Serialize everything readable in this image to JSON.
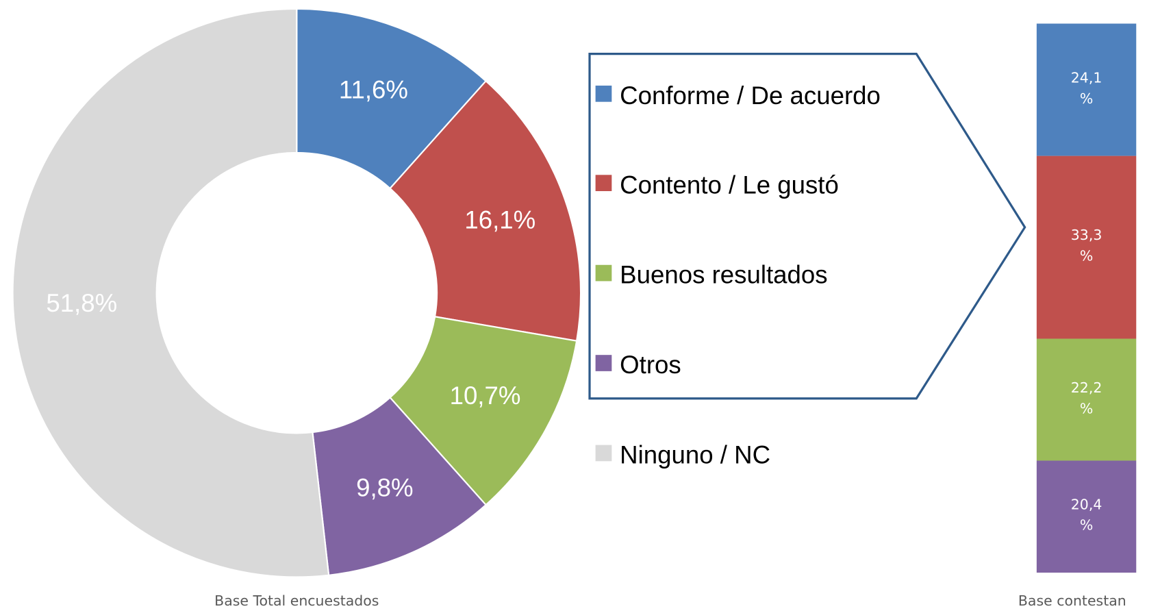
{
  "chart_data": [
    {
      "type": "donut",
      "categories": [
        "Conforme / De acuerdo",
        "Contento / Le gustó",
        "Buenos resultados",
        "Otros",
        "Ninguno / NC"
      ],
      "values": [
        11.6,
        16.1,
        10.7,
        9.8,
        51.8
      ],
      "value_labels": [
        "11,6%",
        "16,1%",
        "10,7%",
        "9,8%",
        "51,8%"
      ],
      "colors": [
        "#4f81bd",
        "#c0504d",
        "#9bbb59",
        "#8064a2",
        "#d9d9d9"
      ],
      "caption": "Base Total encuestados"
    },
    {
      "type": "stacked_bar",
      "categories": [
        "Conforme / De acuerdo",
        "Contento / Le gustó",
        "Buenos resultados",
        "Otros"
      ],
      "values": [
        24.1,
        33.3,
        22.2,
        20.4
      ],
      "value_labels": [
        "24,1 %",
        "33,3 %",
        "22,2 %",
        "20,4 %"
      ],
      "colors": [
        "#4f81bd",
        "#c0504d",
        "#9bbb59",
        "#8064a2"
      ],
      "caption": "Base contestan"
    }
  ]
}
